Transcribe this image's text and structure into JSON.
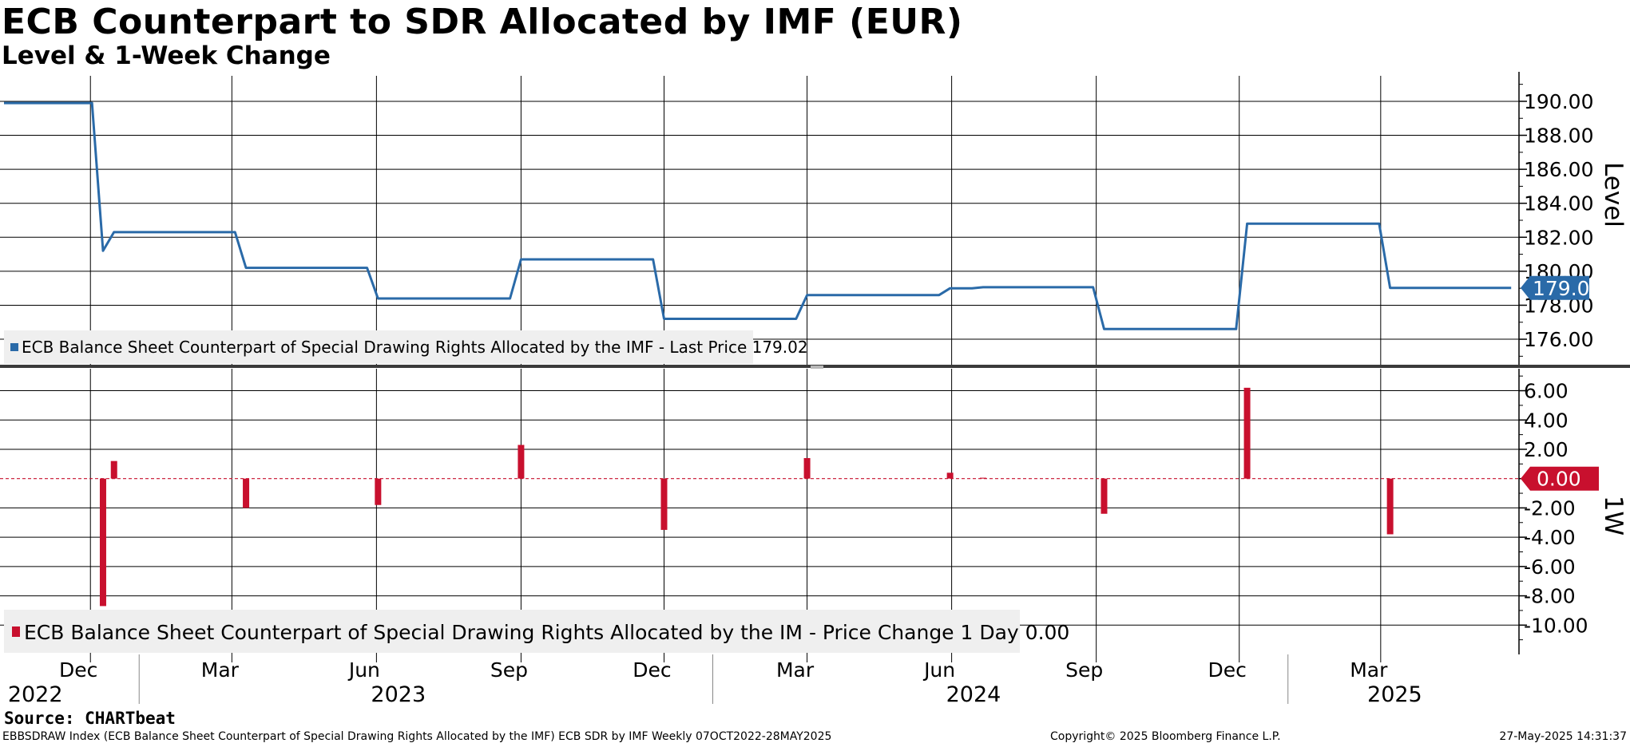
{
  "title": "ECB Counterpart to SDR Allocated by IMF (EUR)",
  "subtitle": "Level & 1-Week Change",
  "source": "Source: CHARTbeat",
  "footer": {
    "left": "EBBSDRAW Index (ECB Balance Sheet Counterpart of Special Drawing Rights Allocated by the IMF) ECB SDR by IMF  Weekly 07OCT2022-28MAY2025",
    "middle": "Copyright© 2025 Bloomberg Finance L.P.",
    "right": "27-May-2025 14:31:37"
  },
  "colors": {
    "level_line": "#2a6aa8",
    "change_bar": "#c8102e",
    "grid": "#000000"
  },
  "chart_data": [
    {
      "type": "line",
      "panel": "top",
      "ylabel": "Level",
      "ylim": [
        174.5,
        191.5
      ],
      "yticks": [
        176,
        178,
        180,
        182,
        184,
        186,
        188,
        190
      ],
      "ytick_labels": [
        "176.00",
        "178.00",
        "180.00",
        "182.00",
        "184.00",
        "186.00",
        "188.00",
        "190.00"
      ],
      "grid": true,
      "legend": "bottom-left",
      "last_value_label": "179.02",
      "series": [
        {
          "name": "ECB Balance Sheet Counterpart of Special Drawing Rights Allocated by the IMF - Last Price 179.02",
          "points": [
            [
              "2022-10-07",
              189.9
            ],
            [
              "2022-12-02",
              189.9
            ],
            [
              "2022-12-09",
              181.2
            ],
            [
              "2022-12-16",
              182.3
            ],
            [
              "2023-03-03",
              182.3
            ],
            [
              "2023-03-10",
              180.2
            ],
            [
              "2023-05-26",
              180.2
            ],
            [
              "2023-06-02",
              178.4
            ],
            [
              "2023-08-25",
              178.4
            ],
            [
              "2023-09-01",
              180.7
            ],
            [
              "2023-11-24",
              180.7
            ],
            [
              "2023-12-01",
              177.2
            ],
            [
              "2024-02-23",
              177.2
            ],
            [
              "2024-03-01",
              178.6
            ],
            [
              "2024-05-24",
              178.6
            ],
            [
              "2024-05-31",
              179.0
            ],
            [
              "2024-06-14",
              179.0
            ],
            [
              "2024-06-21",
              179.06
            ],
            [
              "2024-08-30",
              179.06
            ],
            [
              "2024-09-06",
              176.6
            ],
            [
              "2024-11-29",
              176.6
            ],
            [
              "2024-12-06",
              182.8
            ],
            [
              "2025-02-28",
              182.8
            ],
            [
              "2025-03-07",
              179.02
            ],
            [
              "2025-05-23",
              179.02
            ]
          ]
        }
      ]
    },
    {
      "type": "bar",
      "panel": "bottom",
      "ylabel": "1W",
      "ylim": [
        -12,
        7.5
      ],
      "yticks": [
        -10,
        -8,
        -6,
        -4,
        -2,
        0,
        2,
        4,
        6
      ],
      "ytick_labels": [
        "-10.00",
        "-8.00",
        "-6.00",
        "-4.00",
        "-2.00",
        "0.00",
        "2.00",
        "4.00",
        "6.00"
      ],
      "grid": true,
      "legend": "bottom-left",
      "last_value_label": "0.00",
      "series": [
        {
          "name": "ECB Balance Sheet Counterpart of Special Drawing Rights Allocated by the IM - Price Change 1 Day 0.00",
          "points": [
            [
              "2022-12-09",
              -8.7
            ],
            [
              "2022-12-16",
              1.2
            ],
            [
              "2023-03-10",
              -2.0
            ],
            [
              "2023-06-02",
              -1.8
            ],
            [
              "2023-09-01",
              2.3
            ],
            [
              "2023-12-01",
              -3.5
            ],
            [
              "2024-03-01",
              1.4
            ],
            [
              "2024-05-31",
              0.4
            ],
            [
              "2024-06-21",
              0.06
            ],
            [
              "2024-09-06",
              -2.4
            ],
            [
              "2024-12-06",
              6.2
            ],
            [
              "2025-03-07",
              -3.8
            ]
          ]
        }
      ]
    }
  ],
  "x_axis": {
    "start": "2022-10-07",
    "end": "2025-05-28",
    "month_ticks": [
      {
        "label": "Dec",
        "date": "2022-12-01"
      },
      {
        "label": "Mar",
        "date": "2023-03-01"
      },
      {
        "label": "Jun",
        "date": "2023-06-01"
      },
      {
        "label": "Sep",
        "date": "2023-09-01"
      },
      {
        "label": "Dec",
        "date": "2023-12-01"
      },
      {
        "label": "Mar",
        "date": "2024-03-01"
      },
      {
        "label": "Jun",
        "date": "2024-06-01"
      },
      {
        "label": "Sep",
        "date": "2024-09-01"
      },
      {
        "label": "Dec",
        "date": "2024-12-01"
      },
      {
        "label": "Mar",
        "date": "2025-03-01"
      }
    ],
    "year_labels": [
      {
        "label": "2022",
        "date": "2022-11-01"
      },
      {
        "label": "2023",
        "date": "2023-06-20"
      },
      {
        "label": "2024",
        "date": "2024-06-20"
      },
      {
        "label": "2025",
        "date": "2025-03-15"
      }
    ],
    "year_separators": [
      "2023-01-01",
      "2024-01-01",
      "2025-01-01"
    ]
  }
}
